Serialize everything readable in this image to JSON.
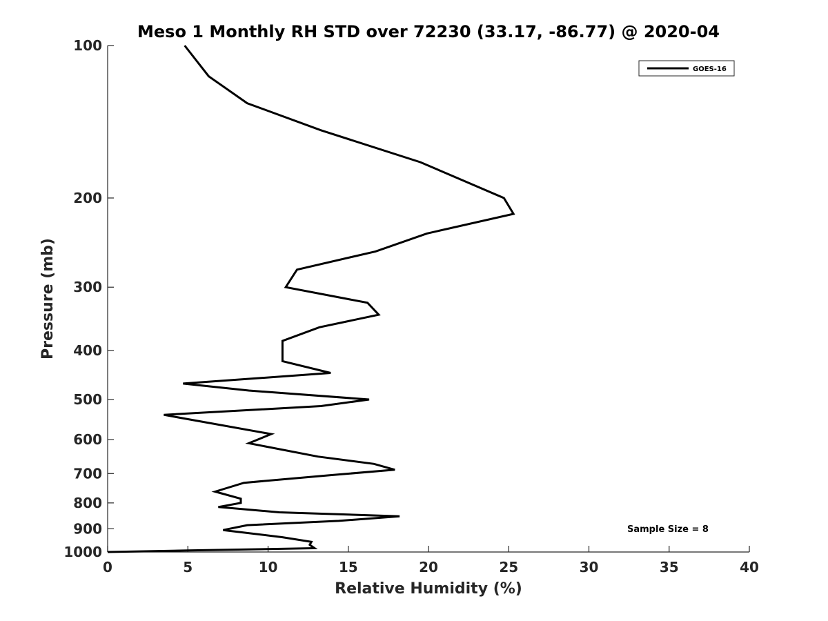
{
  "chart_data": {
    "type": "line",
    "title": "Meso 1 Monthly RH STD over 72230 (33.17, -86.77) @ 2020-04",
    "xlabel": "Relative Humidity (%)",
    "ylabel": "Pressure (mb)",
    "xlim": [
      0,
      40
    ],
    "ylim": [
      100,
      1000
    ],
    "yscale": "log",
    "y_reversed": true,
    "x_ticks": [
      "0",
      "5",
      "10",
      "15",
      "20",
      "25",
      "30",
      "35",
      "40"
    ],
    "y_ticks": [
      "100",
      "200",
      "300",
      "400",
      "500",
      "600",
      "700",
      "800",
      "900",
      "1000"
    ],
    "grid": false,
    "legend_position": "top-right",
    "annotation": "Sample Size = 8",
    "series": [
      {
        "name": "GOES-16",
        "color": "#000000",
        "x": [
          4.8,
          6.3,
          8.7,
          13.3,
          19.5,
          24.7,
          25.3,
          19.9,
          16.7,
          11.8,
          11.1,
          16.2,
          16.9,
          13.2,
          10.9,
          10.9,
          10.9,
          13.9,
          4.7,
          8.8,
          16.3,
          13.3,
          3.5,
          10.2,
          8.8,
          13.1,
          16.6,
          17.9,
          13.9,
          8.5,
          6.7,
          8.3,
          8.3,
          6.9,
          10.7,
          18.2,
          14.4,
          8.7,
          7.2,
          10.9,
          12.7,
          12.6,
          12.9,
          5.0,
          0.0
        ],
        "y": [
          100,
          115,
          130,
          147,
          170,
          200,
          215,
          235,
          255,
          277,
          300,
          322,
          340,
          360,
          383,
          400,
          420,
          443,
          465,
          480,
          500,
          515,
          536,
          585,
          610,
          648,
          670,
          688,
          705,
          730,
          760,
          785,
          800,
          815,
          835,
          850,
          868,
          885,
          905,
          935,
          955,
          968,
          983,
          993,
          1000
        ]
      }
    ]
  }
}
